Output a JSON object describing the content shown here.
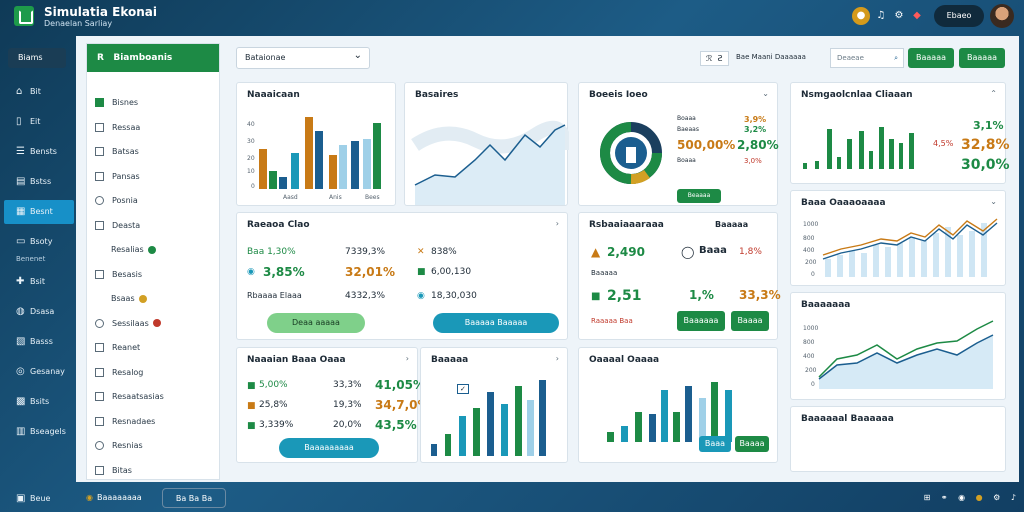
{
  "app": {
    "title": "Simulatia Ekonai",
    "subtitle": "Denaelan Sarliay"
  },
  "topbar": {
    "pill_label": "Ebaeo"
  },
  "sidebar": {
    "top_label": "Biams",
    "items": [
      {
        "label": "Bit",
        "icon": "home-icon"
      },
      {
        "label": "Eit",
        "icon": "document-icon"
      },
      {
        "label": "Bensts",
        "icon": "list-icon"
      },
      {
        "label": "Bstss",
        "icon": "calendar-icon"
      },
      {
        "label": "Besnt",
        "icon": "grid-icon",
        "active": true
      },
      {
        "label": "Bsoty",
        "icon": "card-icon"
      },
      {
        "label": "Bsit",
        "icon": "puzzle-icon"
      },
      {
        "label": "Dsasa",
        "icon": "globe-icon"
      },
      {
        "label": "Basss",
        "icon": "clipboard-icon"
      },
      {
        "label": "Gesanay",
        "icon": "world-icon"
      },
      {
        "label": "Bsits",
        "icon": "box-icon"
      },
      {
        "label": "Bseagels",
        "icon": "chart-icon"
      }
    ],
    "section_label": "Benenet",
    "bottom_label": "Beue"
  },
  "left_panel": {
    "header": "Biamboanis",
    "items": [
      {
        "label": "Bisnes",
        "box": "k"
      },
      {
        "label": "Ressaa",
        "box": "s"
      },
      {
        "label": "Batsas",
        "box": "s"
      },
      {
        "label": "Pansas",
        "box": "s"
      },
      {
        "label": "Posnia",
        "box": "c"
      },
      {
        "label": "Deasta",
        "box": "s"
      },
      {
        "label": "Resalias",
        "dot": "#1d8a45"
      },
      {
        "label": "Besasis",
        "box": "s"
      },
      {
        "label": "Bsaas",
        "dot": "#d2a024"
      },
      {
        "label": "Sessilaas",
        "box": "c",
        "dot": "#c0392b"
      },
      {
        "label": "Reanet",
        "box": "s"
      },
      {
        "label": "Resalog",
        "box": "s"
      },
      {
        "label": "Resaatsasias",
        "box": "s"
      },
      {
        "label": "Resnadaes",
        "box": "s"
      },
      {
        "label": "Resnias",
        "box": "c"
      },
      {
        "label": "Bitas",
        "box": "s"
      }
    ]
  },
  "toolbar": {
    "select_value": "Bataionae",
    "filter_label": "Bae Maani Daaaaaa",
    "search_placeholder": "Deaeae",
    "btn1": "Baaaaa",
    "btn2": "Baaaaa"
  },
  "cards": {
    "c1": {
      "title": "Naaaicaan",
      "ticks": [
        "40",
        "30",
        "20",
        "10",
        "0"
      ],
      "x": [
        "Aasd",
        "Anis",
        "Bees"
      ]
    },
    "c2": {
      "title": "Basaires"
    },
    "c3": {
      "title": "Boeeis Ioeo",
      "label_a": "Boaaa",
      "label_b": "Baeaas",
      "label_c": "Boaaa",
      "val_a": "500,00%",
      "val_b": "2,80%",
      "small_a": "3,9%",
      "small_b": "3,2%",
      "small_c": "3,0%",
      "button": "Beaaaa"
    },
    "c4": {
      "title": "Nsmgaolcnlaa Cliaaan",
      "v1": "3,1%",
      "v2": "32,8%",
      "v3": "30,0%",
      "small": "4,5%"
    },
    "c5": {
      "title": "Raeaoa Clao",
      "r1": [
        "Baa 1,30%",
        "7339,3%",
        "838%"
      ],
      "r2": [
        "3,85%",
        "32,01%",
        "6,00,130"
      ],
      "r3": [
        "Rbaaaa Elaaa",
        "4332,3%",
        "18,30,030"
      ],
      "btn_a": "Deaa aaaaa",
      "btn_b": "Baaaaa Baaaaa"
    },
    "c6": {
      "title": "Rsbaaiaaaraaa",
      "v1": "2,490",
      "v2": "2,51",
      "v3": "1,%",
      "v4": "33,3%",
      "s1": "Baaa",
      "s2": "1,8%",
      "s3": "Baaaaa",
      "btn_a": "Baaaaaa",
      "btn_b": "Baaaa",
      "label": "Raaaaa Baa",
      "side": "Baaaaa"
    },
    "c7": {
      "title": "Baaa Oaaaoaaaa",
      "ticks": [
        "1000",
        "800",
        "400",
        "200",
        "0"
      ]
    },
    "c8": {
      "title": "Naaaian Baaa Oaaa",
      "r1": [
        "5,00%",
        "33,3%",
        "41,05%"
      ],
      "r2": [
        "25,8%",
        "19,3%",
        "34,7,0%"
      ],
      "r3": [
        "3,339%",
        "20,0%",
        "43,5%"
      ],
      "button": "Baaaaaaaaa"
    },
    "c9": {
      "title": "Baaaaa"
    },
    "c10": {
      "title": "Oaaaal Oaaaa",
      "btn_a": "Baaa",
      "btn_b": "Baaaa"
    },
    "c11": {
      "title": "Baaaaaaa",
      "ticks": [
        "1000",
        "800",
        "400",
        "200",
        "0"
      ]
    },
    "c12": {
      "title": "Baaaaaal Baaaaaa"
    }
  },
  "bottombar": {
    "left_label": "Baaaaaaaa",
    "mid_label": "Ba Ba Ba"
  },
  "colors": {
    "green": "#1d8a45",
    "teal": "#1a98b8",
    "blue": "#1b5e8f",
    "orange": "#c87a16",
    "light_blue": "#9fd0e8"
  }
}
